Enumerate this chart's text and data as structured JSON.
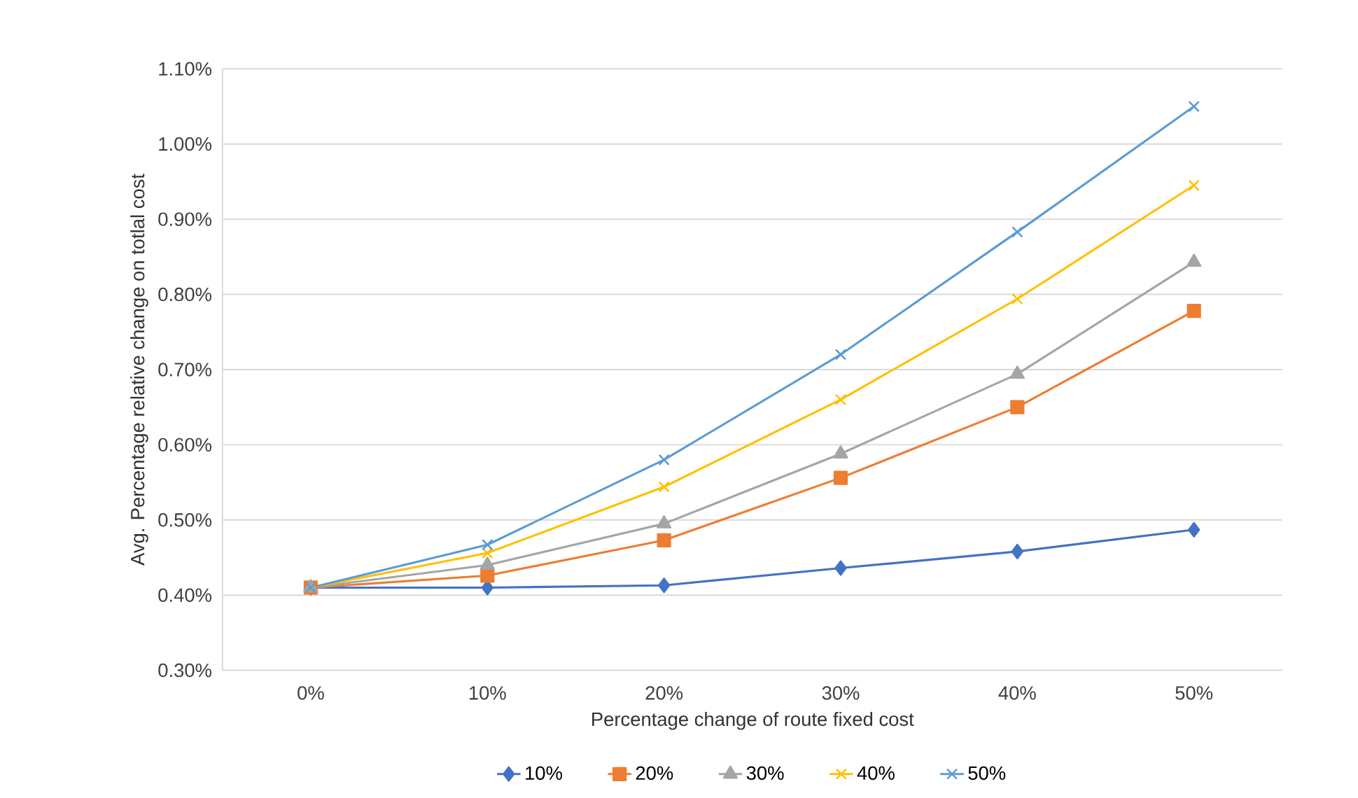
{
  "chart_data": {
    "type": "line",
    "xlabel": "Percentage change of route fixed cost",
    "ylabel": "Avg. Percentage relative change on totlal cost",
    "categories": [
      "0%",
      "10%",
      "20%",
      "30%",
      "40%",
      "50%"
    ],
    "series": [
      {
        "name": "10%",
        "color": "#4472c4",
        "marker": "diamond",
        "values": [
          0.41,
          0.41,
          0.413,
          0.436,
          0.458,
          0.487
        ]
      },
      {
        "name": "20%",
        "color": "#ed7d31",
        "marker": "square",
        "values": [
          0.41,
          0.426,
          0.473,
          0.556,
          0.65,
          0.778
        ]
      },
      {
        "name": "30%",
        "color": "#a5a5a5",
        "marker": "triangle",
        "values": [
          0.41,
          0.44,
          0.495,
          0.588,
          0.694,
          0.843
        ]
      },
      {
        "name": "40%",
        "color": "#ffc000",
        "marker": "cross",
        "values": [
          0.41,
          0.456,
          0.544,
          0.66,
          0.794,
          0.945
        ]
      },
      {
        "name": "50%",
        "color": "#5b9bd5",
        "marker": "cross",
        "values": [
          0.41,
          0.467,
          0.58,
          0.72,
          0.883,
          1.05
        ]
      }
    ],
    "ylim": [
      0.3,
      1.1
    ],
    "yticks": [
      {
        "value": 0.3,
        "label": "0.30%"
      },
      {
        "value": 0.4,
        "label": "0.40%"
      },
      {
        "value": 0.5,
        "label": "0.50%"
      },
      {
        "value": 0.6,
        "label": "0.60%"
      },
      {
        "value": 0.7,
        "label": "0.70%"
      },
      {
        "value": 0.8,
        "label": "0.80%"
      },
      {
        "value": 0.9,
        "label": "0.90%"
      },
      {
        "value": 1.0,
        "label": "1.00%"
      },
      {
        "value": 1.1,
        "label": "1.10%"
      }
    ],
    "grid": "y",
    "legend": "bottom",
    "line_style": "solid"
  }
}
